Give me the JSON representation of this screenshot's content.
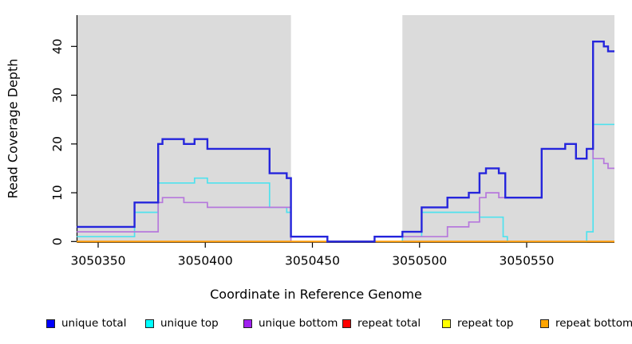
{
  "chart_data": {
    "type": "step-line",
    "title": "",
    "xlabel": "Coordinate in Reference Genome",
    "ylabel": "Read Coverage Depth",
    "xlim": [
      3050340,
      3050591
    ],
    "ylim": [
      0,
      46.4
    ],
    "x_ticks": [
      {
        "value": 3050350,
        "label": "3050350"
      },
      {
        "value": 3050400,
        "label": "3050400"
      },
      {
        "value": 3050450,
        "label": "3050450"
      },
      {
        "value": 3050500,
        "label": "3050500"
      },
      {
        "value": 3050550,
        "label": "3050550"
      }
    ],
    "y_ticks": [
      {
        "value": 0,
        "label": "0"
      },
      {
        "value": 10,
        "label": "10"
      },
      {
        "value": 20,
        "label": "20"
      },
      {
        "value": 30,
        "label": "30"
      },
      {
        "value": 40,
        "label": "40"
      }
    ],
    "plot_background": "#dbdbdb",
    "highlight_gap": {
      "from": 3050440,
      "to": 3050492,
      "color": "#ffffff"
    },
    "grid": false,
    "legend_position": "bottom",
    "series": [
      {
        "name": "repeat total",
        "color": "#dd0000",
        "width": 1.6,
        "points": [
          [
            3050340,
            0
          ]
        ]
      },
      {
        "name": "repeat top",
        "color": "#ffff00",
        "width": 1.6,
        "points": [
          [
            3050340,
            0
          ]
        ]
      },
      {
        "name": "unique top",
        "color": "#4fe2ee",
        "width": 1.7,
        "points": [
          [
            3050340,
            1
          ],
          [
            3050367,
            6
          ],
          [
            3050378,
            12
          ],
          [
            3050395,
            13
          ],
          [
            3050401,
            12
          ],
          [
            3050430,
            7
          ],
          [
            3050438,
            6
          ],
          [
            3050440,
            1
          ],
          [
            3050457,
            0
          ],
          [
            3050492,
            1
          ],
          [
            3050501,
            6
          ],
          [
            3050528,
            5
          ],
          [
            3050539,
            1
          ],
          [
            3050541,
            0
          ],
          [
            3050578,
            2
          ],
          [
            3050581,
            24
          ]
        ]
      },
      {
        "name": "unique bottom",
        "color": "#b678dc",
        "width": 1.7,
        "points": [
          [
            3050340,
            2
          ],
          [
            3050378,
            8
          ],
          [
            3050380,
            9
          ],
          [
            3050390,
            8
          ],
          [
            3050401,
            7
          ],
          [
            3050440,
            0
          ],
          [
            3050479,
            1
          ],
          [
            3050501,
            1
          ],
          [
            3050513,
            3
          ],
          [
            3050523,
            4
          ],
          [
            3050528,
            9
          ],
          [
            3050531,
            10
          ],
          [
            3050537,
            9
          ],
          [
            3050557,
            19
          ],
          [
            3050568,
            20
          ],
          [
            3050573,
            17
          ],
          [
            3050578,
            19
          ],
          [
            3050581,
            17
          ],
          [
            3050586,
            16
          ],
          [
            3050588,
            15
          ]
        ]
      },
      {
        "name": "repeat bottom",
        "color": "#ff9d0a",
        "width": 2,
        "points": [
          [
            3050340,
            0
          ]
        ]
      },
      {
        "name": "unique total",
        "color": "#2525dc",
        "width": 2.4,
        "points": [
          [
            3050340,
            3
          ],
          [
            3050367,
            8
          ],
          [
            3050378,
            20
          ],
          [
            3050380,
            21
          ],
          [
            3050390,
            20
          ],
          [
            3050395,
            21
          ],
          [
            3050401,
            19
          ],
          [
            3050430,
            14
          ],
          [
            3050438,
            13
          ],
          [
            3050440,
            1
          ],
          [
            3050457,
            0
          ],
          [
            3050479,
            1
          ],
          [
            3050492,
            2
          ],
          [
            3050501,
            7
          ],
          [
            3050513,
            9
          ],
          [
            3050523,
            10
          ],
          [
            3050528,
            14
          ],
          [
            3050531,
            15
          ],
          [
            3050537,
            14
          ],
          [
            3050540,
            9
          ],
          [
            3050557,
            19
          ],
          [
            3050568,
            20
          ],
          [
            3050573,
            17
          ],
          [
            3050578,
            19
          ],
          [
            3050581,
            41
          ],
          [
            3050586,
            40
          ],
          [
            3050588,
            39
          ]
        ]
      }
    ]
  },
  "legend": [
    {
      "label": "unique total",
      "color": "#0000ff"
    },
    {
      "label": "unique top",
      "color": "#00ffff"
    },
    {
      "label": "unique bottom",
      "color": "#a020f0"
    },
    {
      "label": "repeat total",
      "color": "#ff0000"
    },
    {
      "label": "repeat top",
      "color": "#ffff00"
    },
    {
      "label": "repeat bottom",
      "color": "#ffa500"
    }
  ]
}
